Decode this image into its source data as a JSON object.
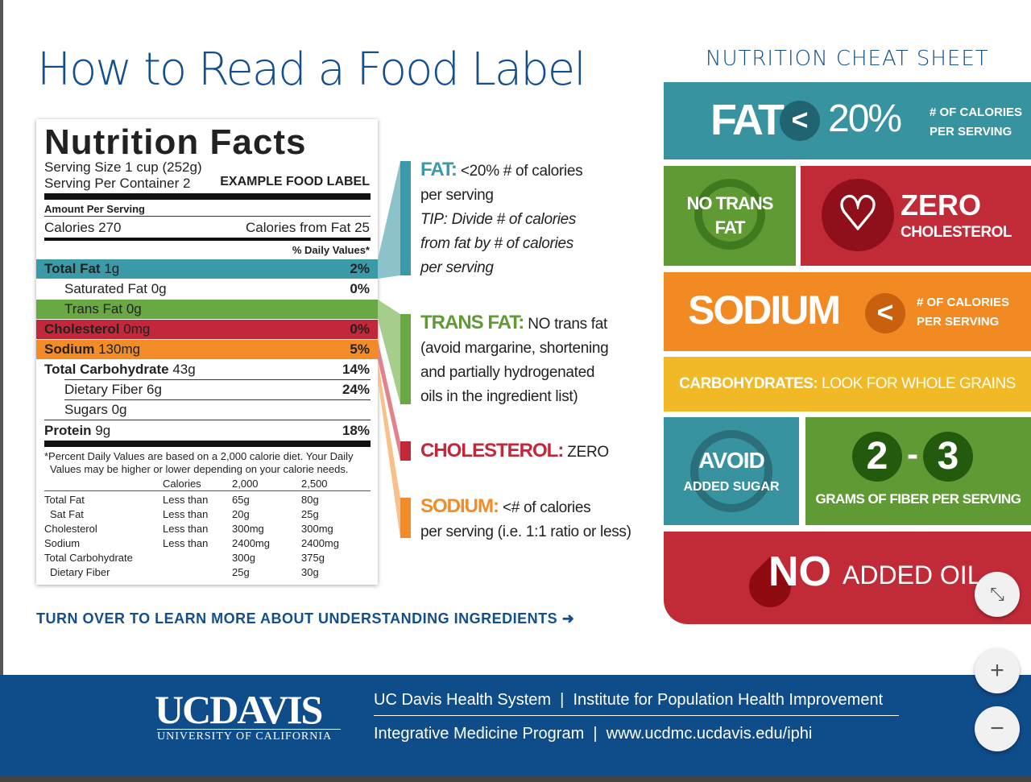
{
  "title": "How to Read a Food Label",
  "label": {
    "heading": "Nutrition Facts",
    "serving_size": "Serving Size 1 cup (252g)",
    "servings": "Serving Per Container 2",
    "example": "EXAMPLE FOOD LABEL",
    "amount": "Amount Per Serving",
    "calories": "Calories 270",
    "calories_fat": "Calories from Fat 25",
    "dv_header": "% Daily Values*",
    "rows": [
      {
        "name": "Total Fat",
        "value": "1g",
        "pct": "2%"
      },
      {
        "name": "Saturated Fat 0g",
        "value": "",
        "pct": "0%"
      },
      {
        "name": "Trans Fat 0g",
        "value": "",
        "pct": ""
      },
      {
        "name": "Cholesterol",
        "value": "0mg",
        "pct": "0%"
      },
      {
        "name": "Sodium",
        "value": "130mg",
        "pct": "5%"
      },
      {
        "name": "Total Carbohydrate",
        "value": "43g",
        "pct": "14%"
      },
      {
        "name": "Dietary Fiber 6g",
        "value": "",
        "pct": "24%"
      },
      {
        "name": "Sugars 0g",
        "value": "",
        "pct": ""
      },
      {
        "name": "Protein",
        "value": "9g",
        "pct": "18%"
      }
    ],
    "footnote1": "*Percent Daily Values are based on a 2,000 calorie diet. Your Daily",
    "footnote2": "Values may be higher or lower depending on your calorie needs.",
    "table_header": [
      "",
      "Calories",
      "2,000",
      "2,500"
    ],
    "table": [
      [
        "Total Fat",
        "Less than",
        "65g",
        "80g"
      ],
      [
        "Sat Fat",
        "Less than",
        "20g",
        "25g"
      ],
      [
        "Cholesterol",
        "Less than",
        "300mg",
        "300mg"
      ],
      [
        "Sodium",
        "Less than",
        "2400mg",
        "2400mg"
      ],
      [
        "Total Carbohydrate",
        "",
        "300g",
        "375g"
      ],
      [
        "Dietary Fiber",
        "",
        "25g",
        "30g"
      ]
    ]
  },
  "callouts": {
    "fat_head": "FAT:",
    "fat_l1": " <20% # of calories",
    "fat_l2": "per serving",
    "fat_l3": "TIP: Divide # of calories",
    "fat_l4": "from fat by # of calories",
    "fat_l5": "per serving",
    "trans_head": "TRANS FAT:",
    "trans_l1": " NO trans fat",
    "trans_l2": "(avoid margarine, shortening",
    "trans_l3": "and partially hydrogenated",
    "trans_l4": "oils in the ingredient list)",
    "chol_head": "CHOLESTEROL:",
    "chol_l1": " ZERO",
    "sod_head": "SODIUM:",
    "sod_l1": " <# of calories",
    "sod_l2": "per serving (i.e. 1:1 ratio or less)"
  },
  "turn_over": "TURN OVER TO LEARN MORE ABOUT UNDERSTANDING INGREDIENTS",
  "cheat": {
    "title": "NUTRITION CHEAT SHEET",
    "fat": "FAT",
    "lt": "<",
    "fat_pct": "20%",
    "per1": "# OF CALORIES",
    "per2": "PER SERVING",
    "notrans1": "NO TRANS",
    "notrans2": "FAT",
    "zero": "ZERO",
    "cholesterol": "CHOLESTEROL",
    "sodium": "SODIUM",
    "carbs_head": "CARBOHYDRATES:",
    "carbs": " LOOK FOR WHOLE GRAINS",
    "avoid": "AVOID",
    "added_sugar": "ADDED SUGAR",
    "n2": "2",
    "dash": "-",
    "n3": "3",
    "fiber": "GRAMS OF FIBER PER SERVING",
    "no": "NO",
    "added_oil": "ADDED OIL"
  },
  "footer": {
    "logo_main": "UCDAVIS",
    "logo_sub": "UNIVERSITY OF CALIFORNIA",
    "line1": "UC Davis Health System  |  Institute for Population Health Improvement",
    "line2": "Integrative Medicine Program  |  www.ucdmc.ucdavis.edu/iphi"
  },
  "colors": {
    "teal": "#3893a0",
    "green": "#5f9a35",
    "red": "#c12a37",
    "orange": "#f28a24",
    "yellow": "#f2b927",
    "navy": "#0f4c8a"
  }
}
